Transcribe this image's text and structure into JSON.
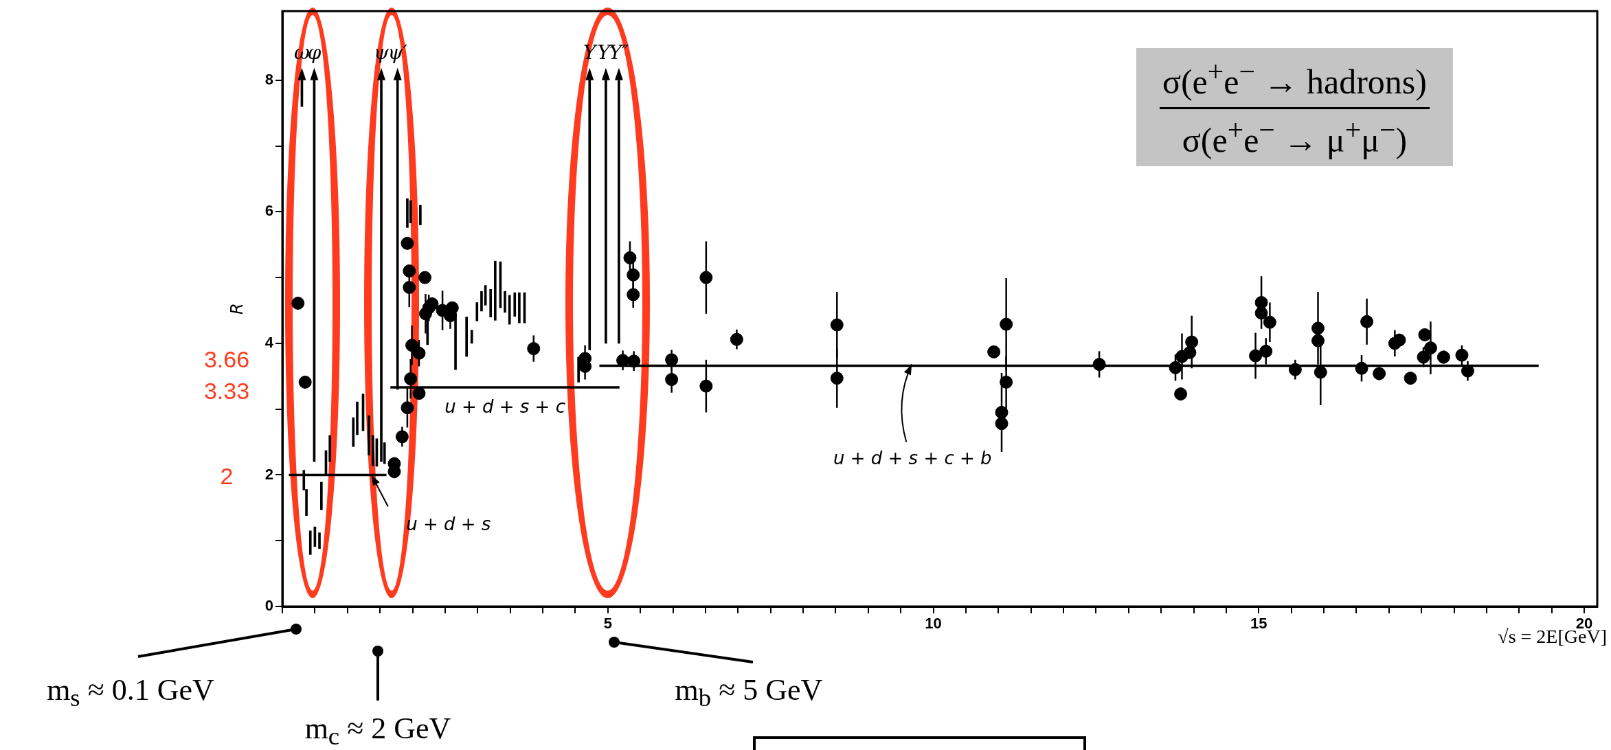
{
  "chart_data": {
    "type": "scatter",
    "ylabel": "R",
    "xlabel": "√s = 2E[GeV]",
    "xlim": [
      0,
      20.2
    ],
    "ylim": [
      0,
      9.05
    ],
    "xticks": [
      {
        "value": 0,
        "label": null
      },
      {
        "value": 0.5,
        "label": null
      },
      {
        "value": 1,
        "label": null
      },
      {
        "value": 1.5,
        "label": null
      },
      {
        "value": 2,
        "label": null
      },
      {
        "value": 2.5,
        "label": null
      },
      {
        "value": 3,
        "label": null
      },
      {
        "value": 3.5,
        "label": null
      },
      {
        "value": 4,
        "label": null
      },
      {
        "value": 4.5,
        "label": null
      },
      5,
      {
        "value": 5.5,
        "label": null
      },
      {
        "value": 6,
        "label": null
      },
      {
        "value": 6.5,
        "label": null
      },
      {
        "value": 7,
        "label": null
      },
      {
        "value": 7.5,
        "label": null
      },
      {
        "value": 8,
        "label": null
      },
      {
        "value": 8.5,
        "label": null
      },
      {
        "value": 9,
        "label": null
      },
      {
        "value": 9.5,
        "label": null
      },
      10,
      {
        "value": 10.5,
        "label": null
      },
      {
        "value": 11,
        "label": null
      },
      {
        "value": 11.5,
        "label": null
      },
      {
        "value": 12,
        "label": null
      },
      {
        "value": 12.5,
        "label": null
      },
      {
        "value": 13,
        "label": null
      },
      {
        "value": 13.5,
        "label": null
      },
      {
        "value": 14,
        "label": null
      },
      {
        "value": 14.5,
        "label": null
      },
      15,
      {
        "value": 15.5,
        "label": null
      },
      {
        "value": 16,
        "label": null
      },
      {
        "value": 16.5,
        "label": null
      },
      {
        "value": 17,
        "label": null
      },
      {
        "value": 17.5,
        "label": null
      },
      {
        "value": 18,
        "label": null
      },
      {
        "value": 18.5,
        "label": null
      },
      {
        "value": 19,
        "label": null
      },
      {
        "value": 19.5,
        "label": null
      },
      20
    ],
    "yticks": [
      0,
      {
        "value": 1,
        "label": null
      },
      2,
      {
        "value": 3,
        "label": null
      },
      4,
      {
        "value": 5,
        "label": null
      },
      6,
      {
        "value": 7,
        "label": null
      },
      8
    ],
    "grid": false,
    "legend": false,
    "series": [
      {
        "marker": "circle",
        "color": "#000000",
        "x": [
          0.24,
          0.35,
          1.72,
          1.72,
          1.84,
          1.92,
          1.92,
          1.95,
          1.95,
          1.99,
          1.97,
          2.1,
          2.1,
          2.19,
          2.2,
          2.25,
          2.3,
          2.46,
          2.58,
          2.61,
          3.86,
          4.65,
          4.65,
          5.23,
          5.4,
          5.34,
          5.39,
          5.39,
          5.98,
          5.98,
          6.51,
          6.51,
          6.98,
          8.52,
          8.52,
          10.93,
          11.12,
          11.12,
          11.05,
          11.05,
          12.55,
          13.72,
          13.8,
          13.82,
          13.94,
          13.97,
          14.95,
          15.04,
          15.04,
          15.11,
          15.17,
          15.56,
          15.91,
          15.91,
          15.95,
          16.58,
          16.66,
          16.85,
          17.09,
          17.16,
          17.33,
          17.53,
          17.55,
          17.64,
          17.84,
          18.12,
          18.21
        ],
        "values": [
          4.61,
          3.41,
          2.17,
          2.05,
          2.58,
          3.02,
          5.52,
          5.1,
          4.85,
          3.97,
          3.46,
          3.85,
          3.24,
          5.0,
          4.45,
          4.54,
          4.6,
          4.5,
          4.42,
          4.54,
          3.92,
          3.77,
          3.65,
          3.74,
          3.73,
          5.3,
          5.04,
          4.74,
          3.75,
          3.45,
          5.0,
          3.35,
          4.06,
          4.28,
          3.47,
          3.87,
          4.29,
          3.41,
          2.95,
          2.78,
          3.68,
          3.63,
          3.23,
          3.8,
          3.86,
          4.02,
          3.81,
          4.62,
          4.46,
          3.88,
          4.32,
          3.6,
          4.23,
          4.04,
          3.56,
          3.62,
          4.33,
          3.54,
          4.0,
          4.05,
          3.47,
          3.79,
          4.13,
          3.93,
          3.79,
          3.82,
          3.58
        ],
        "errors": [
          null,
          null,
          0.1,
          0.1,
          0.15,
          0.3,
          null,
          null,
          0.3,
          0.3,
          0.3,
          0.2,
          null,
          null,
          0.3,
          0.2,
          null,
          0.3,
          0.2,
          null,
          0.2,
          0.2,
          0.2,
          0.15,
          0.15,
          0.25,
          0.2,
          0.2,
          0.15,
          0.2,
          0.55,
          0.4,
          0.15,
          0.5,
          0.45,
          null,
          0.7,
          0.4,
          0.6,
          null,
          0.2,
          0.2,
          0.1,
          0.35,
          null,
          0.4,
          0.35,
          0.4,
          null,
          0.2,
          0.3,
          0.15,
          0.55,
          null,
          0.5,
          0.2,
          0.35,
          0.1,
          0.2,
          null,
          0.1,
          0.15,
          null,
          0.4,
          0.1,
          0.15,
          0.15
        ]
      },
      {
        "type": "bar",
        "color": "#000000",
        "x": [
          0.3,
          0.33,
          0.37,
          0.43,
          0.49,
          0.5,
          0.57,
          0.6,
          0.67,
          0.73,
          1.09,
          1.15,
          1.24,
          1.33,
          1.39,
          1.45,
          1.52,
          1.57,
          1.77,
          1.92,
          1.97,
          2.12,
          2.23,
          2.66,
          2.83,
          2.91,
          2.99,
          3.06,
          3.12,
          3.2,
          3.27,
          3.35,
          3.42,
          3.49,
          3.57,
          3.64,
          3.72,
          4.55,
          4.72,
          4.97,
          5.17
        ],
        "base": [
          7.6,
          1.77,
          1.38,
          0.79,
          2.2,
          0.91,
          0.88,
          1.47,
          2.01,
          2.2,
          2.43,
          2.61,
          2.67,
          2.3,
          2.14,
          2.13,
          2.2,
          2.17,
          3.3,
          5.76,
          5.83,
          5.8,
          3.98,
          3.6,
          3.8,
          4.0,
          4.34,
          4.49,
          4.58,
          4.4,
          4.35,
          4.54,
          4.47,
          4.29,
          4.41,
          4.31,
          4.31,
          3.41,
          3.9,
          4.0,
          4.0
        ],
        "values": [
          0.4,
          0.3,
          0.4,
          0.36,
          5.8,
          0.3,
          0.24,
          0.42,
          0.36,
          0.4,
          0.44,
          0.5,
          0.56,
          0.6,
          0.46,
          0.42,
          5.8,
          0.32,
          4.7,
          0.44,
          0.34,
          0.3,
          0.42,
          0.86,
          0.6,
          0.2,
          0.28,
          0.3,
          0.3,
          0.42,
          0.9,
          0.7,
          0.32,
          0.44,
          0.36,
          0.46,
          0.46,
          0.38,
          4.1,
          4.0,
          4.0
        ],
        "value_labels": [
          "ω",
          null,
          null,
          null,
          "φ",
          null,
          null,
          null,
          null,
          null,
          null,
          null,
          null,
          null,
          null,
          null,
          "ψ",
          null,
          "ψ′",
          null,
          null,
          null,
          null,
          null,
          null,
          null,
          null,
          null,
          null,
          null,
          null,
          null,
          null,
          null,
          null,
          null,
          null,
          null,
          "Υ",
          "Υ′",
          "Υ″"
        ]
      },
      {
        "type": "line",
        "color": "#000000",
        "x": [
          0.1,
          1.6
        ],
        "values": [
          2,
          2
        ]
      },
      {
        "type": "line",
        "color": "#000000",
        "x": [
          1.66,
          5.18
        ],
        "values": [
          3.33,
          3.33
        ]
      },
      {
        "type": "line",
        "color": "#000000",
        "x": [
          4.87,
          19.3
        ],
        "values": [
          3.66,
          3.66
        ]
      }
    ],
    "annotations": [
      "σ(e$^{+}$e$^{−}$ → hadrons)",
      "σ(e$^{+}$e$^{−}$ → μ$^{+}$μ$^{−}$)",
      "3.66",
      "3.33",
      "2",
      "m$_{s}$ ≈ 0.1 GeV",
      "m$_{c}$ ≈ 2 GeV",
      "m$_{b}$ ≈ 5 GeV",
      {
        "text": "u + d + s",
        "x": 1.37,
        "y": 2
      },
      {
        "text": "u + d + s + c",
        "x": 3.42,
        "y": 3.33
      },
      {
        "text": "u + d + s + c + b",
        "x": 9.67,
        "y": 3.66
      }
    ]
  }
}
